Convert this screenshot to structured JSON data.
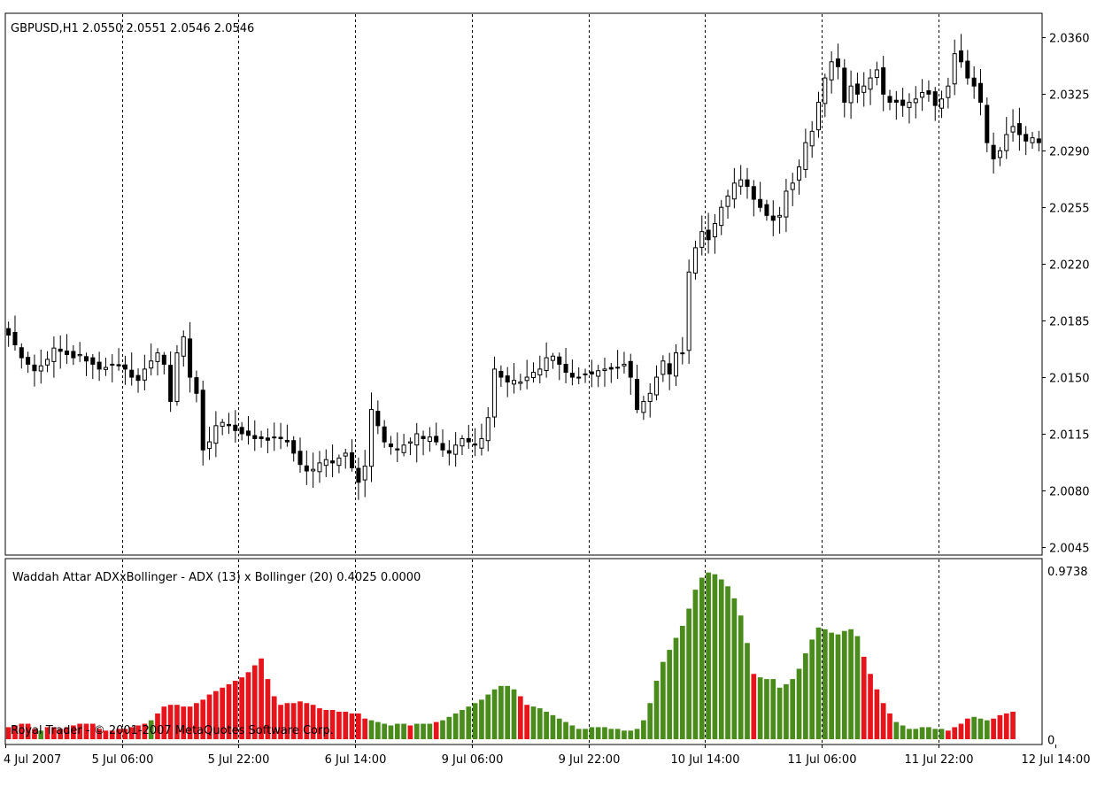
{
  "main": {
    "header": "GBPUSD,H1  2.0550 2.0551 2.0546 2.0546"
  },
  "indicator": {
    "header": "Waddah Attar ADXxBollinger - ADX (13) x Bollinger (20) 0.4025 0.0000",
    "copyright": "Royal Trader - © 2001-2007 MetaQuotes Software Corp."
  },
  "colors": {
    "grid": "#000000",
    "bull_bar": "#4a8c1c",
    "bear_bar": "#e8141c",
    "candle": "#000000",
    "background": "#ffffff"
  },
  "chart_data": [
    {
      "type": "candlestick",
      "symbol": "GBPUSD",
      "timeframe": "H1",
      "ylim": [
        2.004,
        2.0375
      ],
      "y_ticks": [
        "2.0360",
        "2.0325",
        "2.0290",
        "2.0255",
        "2.0220",
        "2.0185",
        "2.0150",
        "2.0115",
        "2.0080",
        "2.0045"
      ],
      "x_ticks": [
        "4 Jul 2007",
        "5 Jul 06:00",
        "5 Jul 22:00",
        "6 Jul 14:00",
        "9 Jul 06:00",
        "9 Jul 22:00",
        "10 Jul 14:00",
        "11 Jul 06:00",
        "11 Jul 22:00",
        "12 Jul 14:00"
      ],
      "close_approx": [
        2.0176,
        2.017,
        2.0162,
        2.0158,
        2.0154,
        2.0157,
        2.0161,
        2.0168,
        2.0166,
        2.0164,
        2.0162,
        2.0164,
        2.016,
        2.0158,
        2.0155,
        2.0156,
        2.0158,
        2.0157,
        2.0155,
        2.015,
        2.0148,
        2.0155,
        2.016,
        2.0165,
        2.0158,
        2.0135,
        2.0165,
        2.0175,
        2.015,
        2.014,
        2.0105,
        2.011,
        2.012,
        2.0122,
        2.012,
        2.0117,
        2.0115,
        2.0114,
        2.0112,
        2.0112,
        2.0111,
        2.0113,
        2.0112,
        2.011,
        2.0103,
        2.0096,
        2.0092,
        2.0093,
        2.0097,
        2.0099,
        2.0097,
        2.01,
        2.0103,
        2.0094,
        2.0085,
        2.0095,
        2.013,
        2.012,
        2.011,
        2.0107,
        2.0105,
        2.0108,
        2.011,
        2.0115,
        2.0112,
        2.0113,
        2.011,
        2.0105,
        2.0103,
        2.0108,
        2.0112,
        2.011,
        2.0108,
        2.0112,
        2.0125,
        2.0155,
        2.015,
        2.0147,
        2.0148,
        2.0147,
        2.015,
        2.0153,
        2.0155,
        2.0162,
        2.0163,
        2.0158,
        2.0153,
        2.015,
        2.015,
        2.0152,
        2.0152,
        2.0154,
        2.0155,
        2.0155,
        2.0156,
        2.0158,
        2.015,
        2.013,
        2.0135,
        2.014,
        2.015,
        2.016,
        2.0152,
        2.0165,
        2.0165,
        2.0215,
        2.023,
        2.024,
        2.0235,
        2.0245,
        2.0255,
        2.0262,
        2.027,
        2.0272,
        2.0268,
        2.026,
        2.0255,
        2.025,
        2.0247,
        2.025,
        2.0265,
        2.027,
        2.028,
        2.0295,
        2.0302,
        2.032,
        2.0335,
        2.0345,
        2.0342,
        2.032,
        2.033,
        2.0325,
        2.033,
        2.0335,
        2.034,
        2.0325,
        2.032,
        2.032,
        2.0318,
        2.032,
        2.0322,
        2.0326,
        2.0325,
        2.0318,
        2.0322,
        2.033,
        2.035,
        2.0345,
        2.0335,
        2.033,
        2.032,
        2.0295,
        2.0285,
        2.029,
        2.03,
        2.0305,
        2.03,
        2.0296,
        2.0298,
        2.0295
      ]
    },
    {
      "type": "bar",
      "name": "Waddah Attar ADXxBollinger",
      "ylim": [
        0,
        0.9738
      ],
      "y_ticks": [
        "0.9738",
        "0"
      ],
      "values": [
        0.07,
        0.08,
        0.09,
        0.09,
        0.06,
        0.05,
        0.07,
        0.07,
        0.06,
        0.07,
        0.08,
        0.09,
        0.09,
        0.09,
        0.06,
        0.05,
        0.05,
        0.06,
        0.06,
        0.07,
        0.08,
        0.09,
        0.11,
        0.15,
        0.19,
        0.2,
        0.2,
        0.19,
        0.19,
        0.21,
        0.23,
        0.26,
        0.28,
        0.3,
        0.32,
        0.34,
        0.36,
        0.39,
        0.43,
        0.47,
        0.35,
        0.25,
        0.2,
        0.21,
        0.21,
        0.22,
        0.21,
        0.2,
        0.18,
        0.17,
        0.17,
        0.16,
        0.16,
        0.15,
        0.15,
        0.12,
        0.11,
        0.1,
        0.09,
        0.08,
        0.09,
        0.09,
        0.08,
        0.09,
        0.09,
        0.09,
        0.1,
        0.11,
        0.13,
        0.15,
        0.17,
        0.19,
        0.21,
        0.23,
        0.26,
        0.29,
        0.31,
        0.31,
        0.29,
        0.25,
        0.2,
        0.19,
        0.18,
        0.16,
        0.14,
        0.12,
        0.1,
        0.08,
        0.06,
        0.06,
        0.07,
        0.07,
        0.07,
        0.06,
        0.06,
        0.05,
        0.05,
        0.06,
        0.11,
        0.21,
        0.34,
        0.45,
        0.52,
        0.59,
        0.66,
        0.76,
        0.87,
        0.94,
        0.97,
        0.96,
        0.93,
        0.89,
        0.82,
        0.72,
        0.56,
        0.38,
        0.36,
        0.35,
        0.35,
        0.3,
        0.32,
        0.35,
        0.41,
        0.5,
        0.58,
        0.65,
        0.64,
        0.62,
        0.61,
        0.63,
        0.64,
        0.6,
        0.48,
        0.38,
        0.29,
        0.21,
        0.15,
        0.1,
        0.08,
        0.06,
        0.06,
        0.07,
        0.07,
        0.06,
        0.06,
        0.05,
        0.07,
        0.09,
        0.12,
        0.13,
        0.12,
        0.11,
        0.12,
        0.14,
        0.15,
        0.16
      ],
      "colors": [
        "r",
        "r",
        "r",
        "r",
        "r",
        "g",
        "r",
        "r",
        "r",
        "r",
        "r",
        "r",
        "r",
        "r",
        "r",
        "r",
        "r",
        "r",
        "r",
        "r",
        "r",
        "r",
        "g",
        "r",
        "r",
        "r",
        "r",
        "r",
        "r",
        "r",
        "r",
        "r",
        "r",
        "r",
        "r",
        "r",
        "r",
        "r",
        "r",
        "r",
        "r",
        "r",
        "r",
        "r",
        "r",
        "r",
        "r",
        "r",
        "r",
        "r",
        "r",
        "r",
        "r",
        "r",
        "r",
        "r",
        "g",
        "g",
        "g",
        "g",
        "g",
        "g",
        "r",
        "g",
        "g",
        "g",
        "r",
        "g",
        "g",
        "g",
        "g",
        "g",
        "g",
        "g",
        "g",
        "g",
        "g",
        "g",
        "g",
        "r",
        "r",
        "g",
        "g",
        "g",
        "g",
        "g",
        "g",
        "g",
        "g",
        "g",
        "g",
        "g",
        "g",
        "g",
        "g",
        "g",
        "g",
        "g",
        "g",
        "g",
        "g",
        "g",
        "g",
        "g",
        "g",
        "g",
        "g",
        "g",
        "g",
        "g",
        "g",
        "g",
        "g",
        "g",
        "g",
        "r",
        "g",
        "g",
        "g",
        "g",
        "g",
        "g",
        "g",
        "g",
        "g",
        "g",
        "g",
        "g",
        "g",
        "g",
        "g",
        "g",
        "r",
        "r",
        "r",
        "r",
        "r",
        "g",
        "g",
        "g",
        "g",
        "g",
        "g",
        "g",
        "g",
        "r",
        "r",
        "r",
        "r",
        "g",
        "g",
        "g",
        "r",
        "r",
        "r",
        "r"
      ]
    }
  ]
}
